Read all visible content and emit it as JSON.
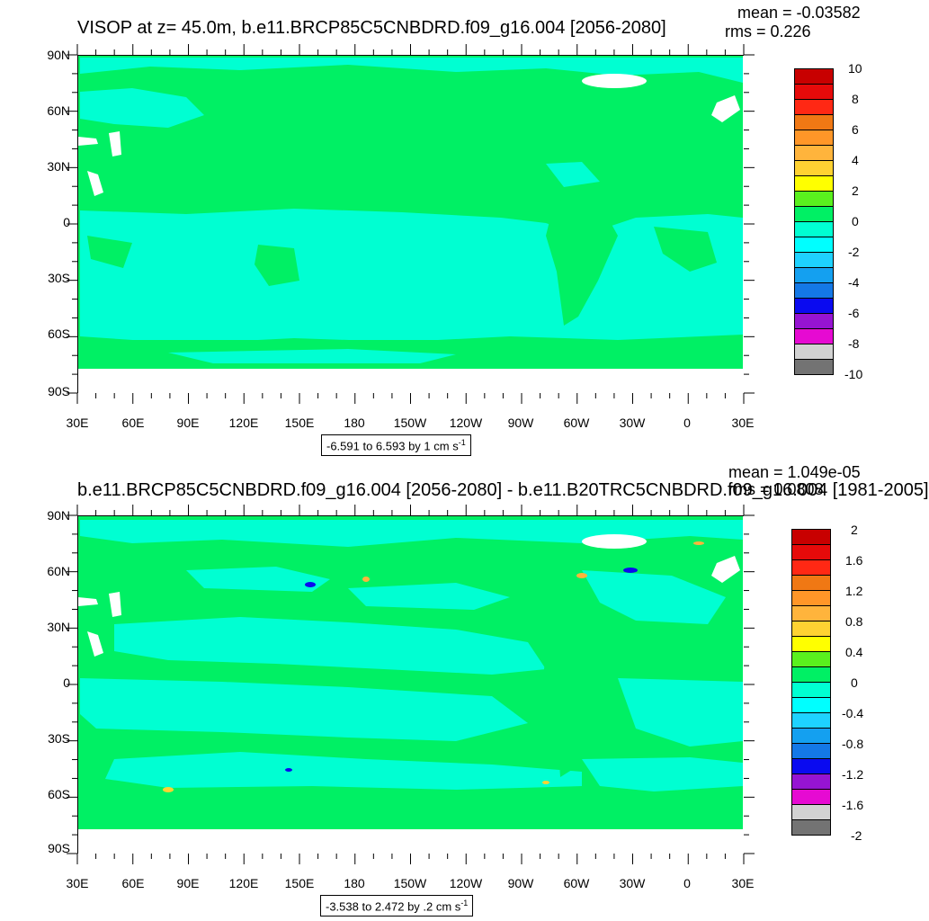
{
  "colors": {
    "fill_levels": [
      "#737373",
      "#d2d2d2",
      "#e60ad2",
      "#9614d2",
      "#0a0af0",
      "#1478e6",
      "#14a0f0",
      "#1ed2ff",
      "#00ffff",
      "#00ffd2",
      "#00f064",
      "#5af01e",
      "#ffff00",
      "#ffd232",
      "#ffb43c",
      "#ff9628",
      "#f07814",
      "#ff2814",
      "#e60a0a",
      "#c80000"
    ],
    "land": "#ffffff"
  },
  "panels": [
    {
      "title": "VISOP at z=  45.0m, b.e11.BRCP85C5CNBDRD.f09_g16.004 [2056-2080]",
      "mean": "mean = -0.03582",
      "rms": "rms = 0.226",
      "range_label": "-6.591 to 6.593 by 1 cm s",
      "range_unit_exp": "-1",
      "lat_labels": [
        "90N",
        "60N",
        "30N",
        "0",
        "30S",
        "60S",
        "90S"
      ],
      "lon_labels": [
        "30E",
        "60E",
        "90E",
        "120E",
        "150E",
        "180",
        "150W",
        "120W",
        "90W",
        "60W",
        "30W",
        "0",
        "30E"
      ],
      "colorbar_labels": [
        "10",
        "8",
        "6",
        "4",
        "2",
        "0",
        "-2",
        "-4",
        "-6",
        "-8",
        "-10"
      ]
    },
    {
      "title": "b.e11.BRCP85C5CNBDRD.f09_g16.004 [2056-2080] - b.e11.B20TRC5CNBDRD.f09_g16.004 [1981-2005]",
      "mean": "mean = 1.049e-05",
      "rms": "rms = 0.0808",
      "range_label": "-3.538 to 2.472 by .2 cm s",
      "range_unit_exp": "-1",
      "lat_labels": [
        "90N",
        "60N",
        "30N",
        "0",
        "30S",
        "60S",
        "90S"
      ],
      "lon_labels": [
        "30E",
        "60E",
        "90E",
        "120E",
        "150E",
        "180",
        "150W",
        "120W",
        "90W",
        "60W",
        "30W",
        "0",
        "30E"
      ],
      "colorbar_labels": [
        "2",
        "1.6",
        "1.2",
        "0.8",
        "0.4",
        "0",
        "-0.4",
        "-0.8",
        "-1.2",
        "-1.6",
        "-2"
      ]
    }
  ]
}
